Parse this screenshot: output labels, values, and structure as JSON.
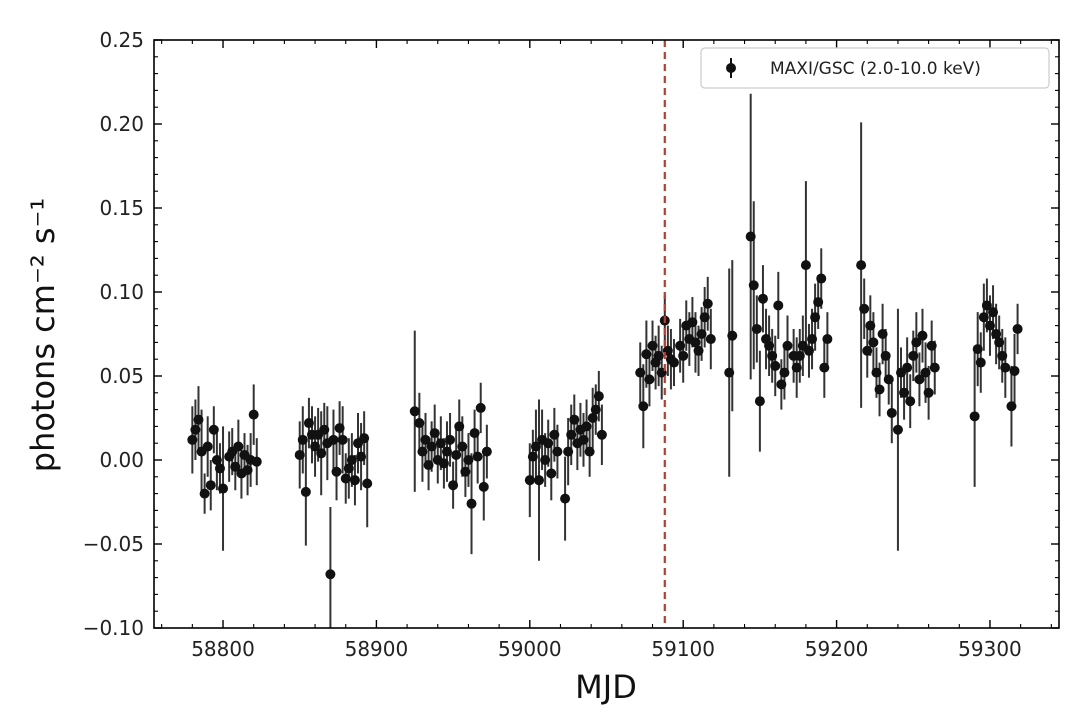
{
  "chart_data": {
    "type": "scatter",
    "xlabel": "MJD",
    "ylabel": "photons cm⁻² s⁻¹",
    "xlim": [
      58755,
      59345
    ],
    "ylim": [
      -0.1,
      0.25
    ],
    "x_ticks": [
      58800,
      58900,
      59000,
      59100,
      59200,
      59300
    ],
    "y_ticks": [
      -0.1,
      -0.05,
      0.0,
      0.05,
      0.1,
      0.15,
      0.2,
      0.25
    ],
    "x_tick_labels": [
      "58800",
      "58900",
      "59000",
      "59100",
      "59200",
      "59300"
    ],
    "y_tick_labels": [
      "−0.10",
      "−0.05",
      "0.00",
      "0.05",
      "0.10",
      "0.15",
      "0.20",
      "0.25"
    ],
    "grid": false,
    "legend_position": "top-right",
    "vline": {
      "x": 59088,
      "color": "#c0392b",
      "style": "dashed"
    },
    "series": [
      {
        "name": "MAXI/GSC (2.0-10.0 keV)",
        "color": "#111111",
        "marker": "circle-with-errorbar",
        "points": [
          [
            58780,
            0.012,
            0.02
          ],
          [
            58782,
            0.018,
            0.018
          ],
          [
            58784,
            0.024,
            0.02
          ],
          [
            58786,
            0.005,
            0.025
          ],
          [
            58788,
            -0.02,
            0.012
          ],
          [
            58790,
            0.008,
            0.018
          ],
          [
            58792,
            -0.015,
            0.015
          ],
          [
            58794,
            0.018,
            0.014
          ],
          [
            58796,
            0.0,
            0.018
          ],
          [
            58798,
            -0.005,
            0.015
          ],
          [
            58800,
            -0.017,
            0.037
          ],
          [
            58804,
            0.002,
            0.015
          ],
          [
            58806,
            0.005,
            0.014
          ],
          [
            58808,
            -0.004,
            0.014
          ],
          [
            58810,
            0.008,
            0.016
          ],
          [
            58812,
            -0.008,
            0.015
          ],
          [
            58814,
            0.003,
            0.013
          ],
          [
            58816,
            -0.006,
            0.015
          ],
          [
            58818,
            0.0,
            0.016
          ],
          [
            58820,
            0.027,
            0.018
          ],
          [
            58822,
            -0.001,
            0.014
          ],
          [
            58850,
            0.003,
            0.02
          ],
          [
            58852,
            0.012,
            0.02
          ],
          [
            58854,
            -0.019,
            0.032
          ],
          [
            58856,
            0.022,
            0.015
          ],
          [
            58858,
            0.015,
            0.017
          ],
          [
            58860,
            0.008,
            0.018
          ],
          [
            58862,
            0.015,
            0.016
          ],
          [
            58864,
            0.004,
            0.025
          ],
          [
            58866,
            0.018,
            0.016
          ],
          [
            58868,
            0.01,
            0.022
          ],
          [
            58870,
            -0.068,
            0.04
          ],
          [
            58872,
            0.012,
            0.018
          ],
          [
            58874,
            -0.007,
            0.017
          ],
          [
            58876,
            0.019,
            0.016
          ],
          [
            58878,
            0.012,
            0.02
          ],
          [
            58880,
            -0.011,
            0.015
          ],
          [
            58882,
            -0.005,
            0.018
          ],
          [
            58884,
            0.0,
            0.016
          ],
          [
            58886,
            -0.012,
            0.015
          ],
          [
            58888,
            0.01,
            0.018
          ],
          [
            58890,
            0.002,
            0.02
          ],
          [
            58892,
            0.013,
            0.016
          ],
          [
            58894,
            -0.014,
            0.026
          ],
          [
            58925,
            0.029,
            0.048
          ],
          [
            58928,
            0.022,
            0.018
          ],
          [
            58930,
            0.005,
            0.018
          ],
          [
            58932,
            0.012,
            0.016
          ],
          [
            58934,
            -0.003,
            0.015
          ],
          [
            58936,
            0.008,
            0.015
          ],
          [
            58938,
            0.016,
            0.017
          ],
          [
            58940,
            0.0,
            0.014
          ],
          [
            58942,
            0.01,
            0.016
          ],
          [
            58944,
            -0.002,
            0.015
          ],
          [
            58946,
            0.005,
            0.018
          ],
          [
            58948,
            0.012,
            0.016
          ],
          [
            58950,
            -0.015,
            0.014
          ],
          [
            58952,
            0.003,
            0.018
          ],
          [
            58954,
            0.02,
            0.016
          ],
          [
            58956,
            0.008,
            0.018
          ],
          [
            58958,
            -0.007,
            0.015
          ],
          [
            58960,
            0.0,
            0.016
          ],
          [
            58962,
            -0.026,
            0.03
          ],
          [
            58964,
            0.016,
            0.014
          ],
          [
            58966,
            0.002,
            0.016
          ],
          [
            58968,
            0.031,
            0.015
          ],
          [
            58970,
            -0.016,
            0.02
          ],
          [
            58972,
            0.005,
            0.016
          ],
          [
            59000,
            -0.012,
            0.022
          ],
          [
            59002,
            0.002,
            0.016
          ],
          [
            59004,
            0.008,
            0.022
          ],
          [
            59006,
            -0.012,
            0.048
          ],
          [
            59008,
            0.012,
            0.018
          ],
          [
            59010,
            0.0,
            0.016
          ],
          [
            59012,
            0.01,
            0.014
          ],
          [
            59014,
            -0.008,
            0.016
          ],
          [
            59016,
            0.015,
            0.016
          ],
          [
            59018,
            0.005,
            0.016
          ],
          [
            59023,
            -0.023,
            0.025
          ],
          [
            59025,
            0.005,
            0.02
          ],
          [
            59027,
            0.015,
            0.018
          ],
          [
            59029,
            0.024,
            0.015
          ],
          [
            59031,
            0.01,
            0.016
          ],
          [
            59033,
            0.018,
            0.016
          ],
          [
            59035,
            0.012,
            0.016
          ],
          [
            59037,
            0.02,
            0.016
          ],
          [
            59039,
            0.005,
            0.015
          ],
          [
            59041,
            0.025,
            0.018
          ],
          [
            59043,
            0.03,
            0.015
          ],
          [
            59045,
            0.038,
            0.015
          ],
          [
            59047,
            0.015,
            0.018
          ],
          [
            59072,
            0.052,
            0.018
          ],
          [
            59074,
            0.032,
            0.025
          ],
          [
            59076,
            0.063,
            0.02
          ],
          [
            59078,
            0.048,
            0.016
          ],
          [
            59080,
            0.068,
            0.015
          ],
          [
            59082,
            0.058,
            0.016
          ],
          [
            59084,
            0.062,
            0.018
          ],
          [
            59086,
            0.052,
            0.016
          ],
          [
            59088,
            0.083,
            0.015
          ],
          [
            59090,
            0.065,
            0.015
          ],
          [
            59092,
            0.06,
            0.018
          ],
          [
            59094,
            0.058,
            0.014
          ],
          [
            59098,
            0.068,
            0.016
          ],
          [
            59100,
            0.062,
            0.016
          ],
          [
            59102,
            0.08,
            0.015
          ],
          [
            59104,
            0.072,
            0.016
          ],
          [
            59106,
            0.082,
            0.015
          ],
          [
            59108,
            0.07,
            0.018
          ],
          [
            59110,
            0.065,
            0.015
          ],
          [
            59112,
            0.075,
            0.016
          ],
          [
            59114,
            0.085,
            0.018
          ],
          [
            59116,
            0.093,
            0.016
          ],
          [
            59118,
            0.072,
            0.018
          ],
          [
            59130,
            0.052,
            0.062
          ],
          [
            59132,
            0.074,
            0.045
          ],
          [
            59144,
            0.133,
            0.085
          ],
          [
            59146,
            0.104,
            0.05
          ],
          [
            59148,
            0.078,
            0.02
          ],
          [
            59150,
            0.035,
            0.03
          ],
          [
            59152,
            0.096,
            0.02
          ],
          [
            59154,
            0.072,
            0.018
          ],
          [
            59156,
            0.068,
            0.018
          ],
          [
            59158,
            0.062,
            0.016
          ],
          [
            59160,
            0.056,
            0.018
          ],
          [
            59162,
            0.092,
            0.02
          ],
          [
            59164,
            0.045,
            0.015
          ],
          [
            59166,
            0.052,
            0.016
          ],
          [
            59168,
            0.068,
            0.018
          ],
          [
            59172,
            0.062,
            0.016
          ],
          [
            59174,
            0.055,
            0.018
          ],
          [
            59176,
            0.062,
            0.016
          ],
          [
            59178,
            0.068,
            0.018
          ],
          [
            59180,
            0.116,
            0.05
          ],
          [
            59182,
            0.065,
            0.016
          ],
          [
            59184,
            0.072,
            0.018
          ],
          [
            59186,
            0.085,
            0.02
          ],
          [
            59188,
            0.094,
            0.016
          ],
          [
            59190,
            0.108,
            0.018
          ],
          [
            59192,
            0.055,
            0.018
          ],
          [
            59194,
            0.072,
            0.016
          ],
          [
            59216,
            0.116,
            0.085
          ],
          [
            59218,
            0.09,
            0.018
          ],
          [
            59220,
            0.065,
            0.016
          ],
          [
            59222,
            0.08,
            0.018
          ],
          [
            59224,
            0.07,
            0.018
          ],
          [
            59226,
            0.052,
            0.015
          ],
          [
            59228,
            0.042,
            0.016
          ],
          [
            59230,
            0.075,
            0.018
          ],
          [
            59232,
            0.062,
            0.016
          ],
          [
            59234,
            0.048,
            0.015
          ],
          [
            59236,
            0.028,
            0.018
          ],
          [
            59240,
            0.018,
            0.072
          ],
          [
            59242,
            0.052,
            0.015
          ],
          [
            59244,
            0.04,
            0.016
          ],
          [
            59246,
            0.055,
            0.018
          ],
          [
            59248,
            0.035,
            0.016
          ],
          [
            59250,
            0.062,
            0.015
          ],
          [
            59252,
            0.07,
            0.018
          ],
          [
            59254,
            0.048,
            0.016
          ],
          [
            59256,
            0.074,
            0.016
          ],
          [
            59258,
            0.052,
            0.018
          ],
          [
            59260,
            0.04,
            0.016
          ],
          [
            59262,
            0.068,
            0.015
          ],
          [
            59264,
            0.055,
            0.016
          ],
          [
            59290,
            0.026,
            0.042
          ],
          [
            59292,
            0.066,
            0.022
          ],
          [
            59294,
            0.058,
            0.018
          ],
          [
            59296,
            0.085,
            0.02
          ],
          [
            59298,
            0.092,
            0.016
          ],
          [
            59300,
            0.08,
            0.018
          ],
          [
            59302,
            0.088,
            0.016
          ],
          [
            59304,
            0.075,
            0.018
          ],
          [
            59306,
            0.07,
            0.016
          ],
          [
            59308,
            0.062,
            0.016
          ],
          [
            59310,
            0.055,
            0.018
          ],
          [
            59314,
            0.032,
            0.024
          ],
          [
            59316,
            0.053,
            0.022
          ],
          [
            59318,
            0.078,
            0.015
          ]
        ]
      }
    ]
  }
}
